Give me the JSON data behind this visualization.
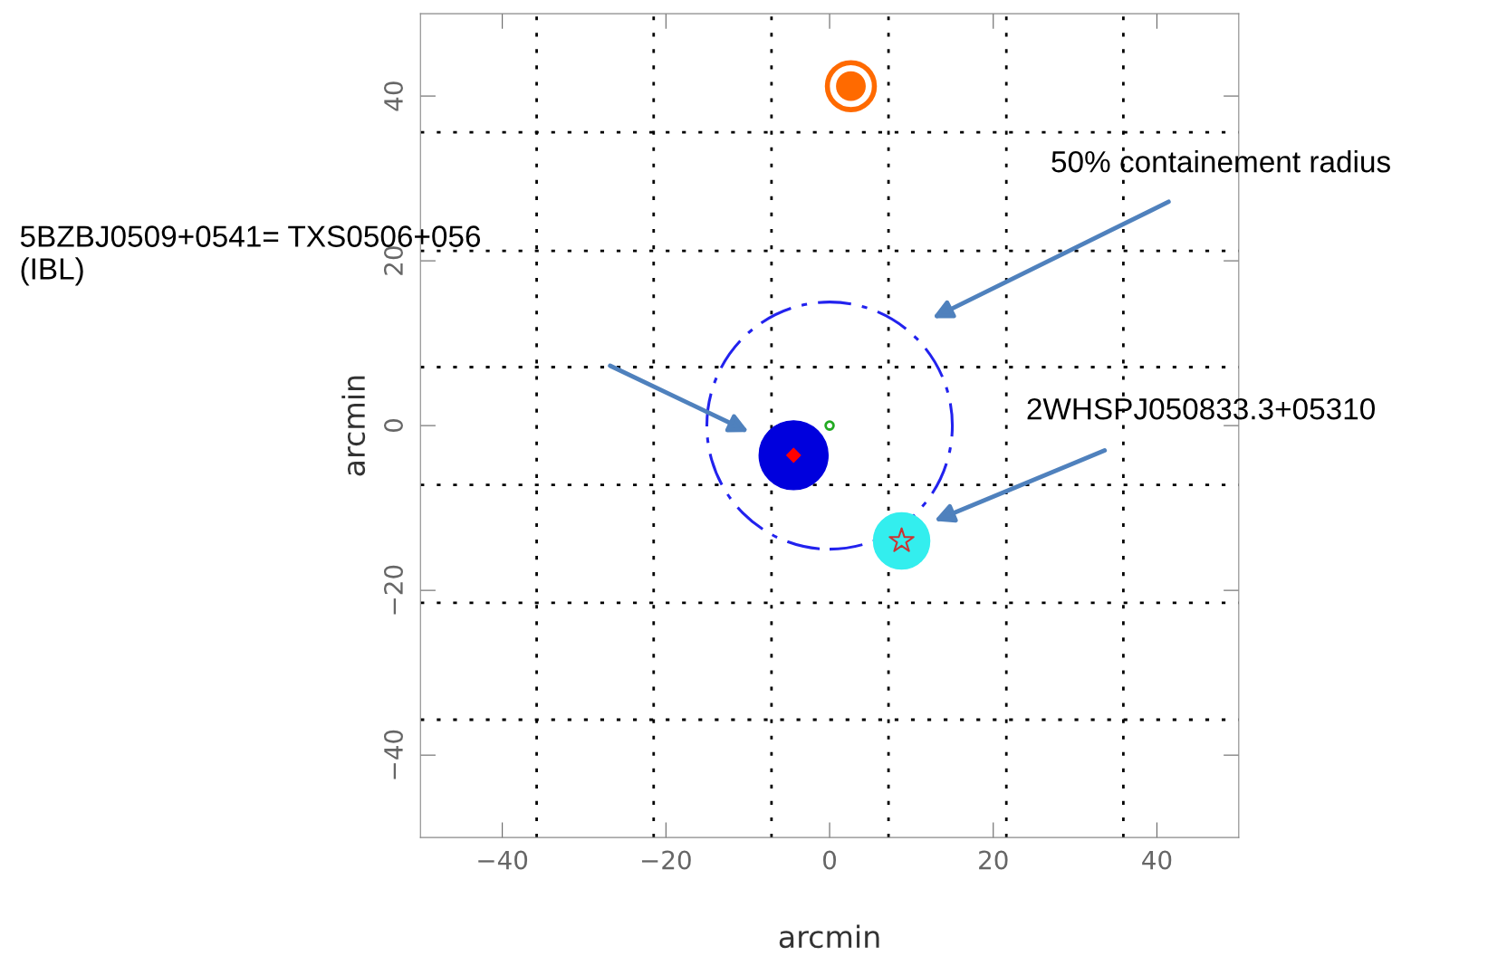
{
  "chart_data": {
    "type": "scatter",
    "xlabel": "arcmin",
    "ylabel": "arcmin",
    "xlim": [
      -50,
      50
    ],
    "ylim": [
      -50,
      50
    ],
    "xticks": [
      -40,
      -20,
      0,
      20,
      40
    ],
    "yticks": [
      -40,
      -20,
      0,
      20,
      40
    ],
    "grid": false,
    "legend": false,
    "series": [
      {
        "type": "scatter",
        "marker": "circle",
        "color": "#ff6a00",
        "x": [
          2.6
        ],
        "values": [
          41.2
        ]
      },
      {
        "type": "scatter",
        "marker": "circle",
        "color": "#0000dd",
        "x": [
          -4.4
        ],
        "values": [
          -3.6
        ]
      },
      {
        "type": "scatter",
        "marker": "diamond",
        "color": "#ff0000",
        "x": [
          -4.4
        ],
        "values": [
          -3.6
        ]
      },
      {
        "type": "scatter",
        "marker": "circle",
        "color": "#22aa22",
        "x": [
          0
        ],
        "values": [
          0
        ]
      },
      {
        "type": "scatter",
        "marker": "circle",
        "color": "#33eeee",
        "x": [
          8.8
        ],
        "values": [
          -14
        ]
      },
      {
        "type": "scatter",
        "marker": "star",
        "color": "#cc3333",
        "x": [
          8.8
        ],
        "values": [
          -14
        ]
      }
    ],
    "ref_lines": [
      {
        "axis": "x",
        "value": -35.8,
        "color": "#000000",
        "line_style": "dotted"
      },
      {
        "axis": "x",
        "value": -21.5,
        "color": "#000000",
        "line_style": "dotted"
      },
      {
        "axis": "x",
        "value": -7.1,
        "color": "#000000",
        "line_style": "dotted"
      },
      {
        "axis": "x",
        "value": 7.2,
        "color": "#000000",
        "line_style": "dotted"
      },
      {
        "axis": "x",
        "value": 21.6,
        "color": "#000000",
        "line_style": "dotted"
      },
      {
        "axis": "x",
        "value": 35.9,
        "color": "#000000",
        "line_style": "dotted"
      },
      {
        "axis": "y",
        "value": 35.6,
        "color": "#000000",
        "line_style": "dotted"
      },
      {
        "axis": "y",
        "value": 21.2,
        "color": "#000000",
        "line_style": "dotted"
      },
      {
        "axis": "y",
        "value": 7.1,
        "color": "#000000",
        "line_style": "dotted"
      },
      {
        "axis": "y",
        "value": -7.2,
        "color": "#000000",
        "line_style": "dotted"
      },
      {
        "axis": "y",
        "value": -21.5,
        "color": "#000000",
        "line_style": "dotted"
      },
      {
        "axis": "y",
        "value": -35.7,
        "color": "#000000",
        "line_style": "dotted"
      }
    ],
    "annotations": [
      "50% containement radius",
      "5BZBJ0509+0541= TXS0506+056\n(IBL)",
      "2WHSPJ050833.3+05310"
    ]
  }
}
